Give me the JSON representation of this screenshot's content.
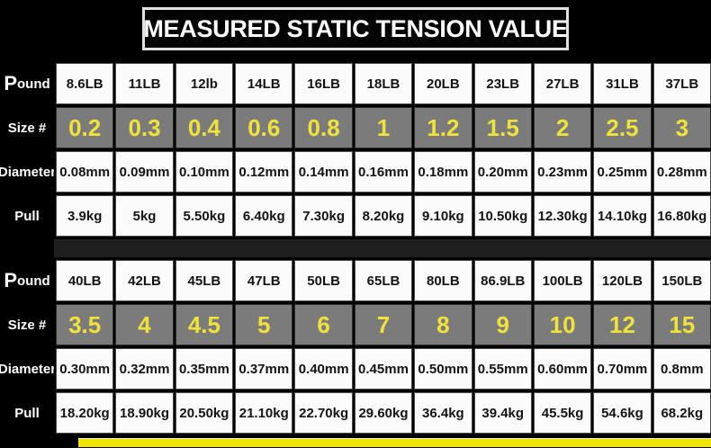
{
  "chart_data": {
    "type": "table",
    "title": "MEASURED STATIC TENSION VALUE",
    "row_keys": [
      "pound",
      "size",
      "diameter",
      "pull"
    ],
    "row_labels": {
      "pound": "Pound",
      "size": "Size #",
      "diameter": "Diameter",
      "pull": "Pull"
    },
    "blocks": [
      {
        "pound": [
          "8.6LB",
          "11LB",
          "12lb",
          "14LB",
          "16LB",
          "18LB",
          "20LB",
          "23LB",
          "27LB",
          "31LB",
          "37LB"
        ],
        "size": [
          "0.2",
          "0.3",
          "0.4",
          "0.6",
          "0.8",
          "1",
          "1.2",
          "1.5",
          "2",
          "2.5",
          "3"
        ],
        "diameter": [
          "0.08mm",
          "0.09mm",
          "0.10mm",
          "0.12mm",
          "0.14mm",
          "0.16mm",
          "0.18mm",
          "0.20mm",
          "0.23mm",
          "0.25mm",
          "0.28mm"
        ],
        "pull": [
          "3.9kg",
          "5kg",
          "5.50kg",
          "6.40kg",
          "7.30kg",
          "8.20kg",
          "9.10kg",
          "10.50kg",
          "12.30kg",
          "14.10kg",
          "16.80kg"
        ]
      },
      {
        "pound": [
          "40LB",
          "42LB",
          "45LB",
          "47LB",
          "50LB",
          "65LB",
          "80LB",
          "86.9LB",
          "100LB",
          "120LB",
          "150LB"
        ],
        "size": [
          "3.5",
          "4",
          "4.5",
          "5",
          "6",
          "7",
          "8",
          "9",
          "10",
          "12",
          "15"
        ],
        "diameter": [
          "0.30mm",
          "0.32mm",
          "0.35mm",
          "0.37mm",
          "0.40mm",
          "0.45mm",
          "0.50mm",
          "0.55mm",
          "0.60mm",
          "0.70mm",
          "0.8mm"
        ],
        "pull": [
          "18.20kg",
          "18.90kg",
          "20.50kg",
          "21.10kg",
          "22.70kg",
          "29.60kg",
          "36.4kg",
          "39.4kg",
          "45.5kg",
          "54.6kg",
          "68.2kg"
        ]
      }
    ],
    "layout": {
      "columns_per_block": 11,
      "grid": "on",
      "legend": "none"
    }
  },
  "colors": {
    "background": "#000000",
    "cell_bg": "#fbfbfb",
    "size_row_bg": "#7b7b7b",
    "size_value_color": "#efe23b",
    "accent_strip": "#f0e500",
    "title_color": "#ffffff"
  }
}
